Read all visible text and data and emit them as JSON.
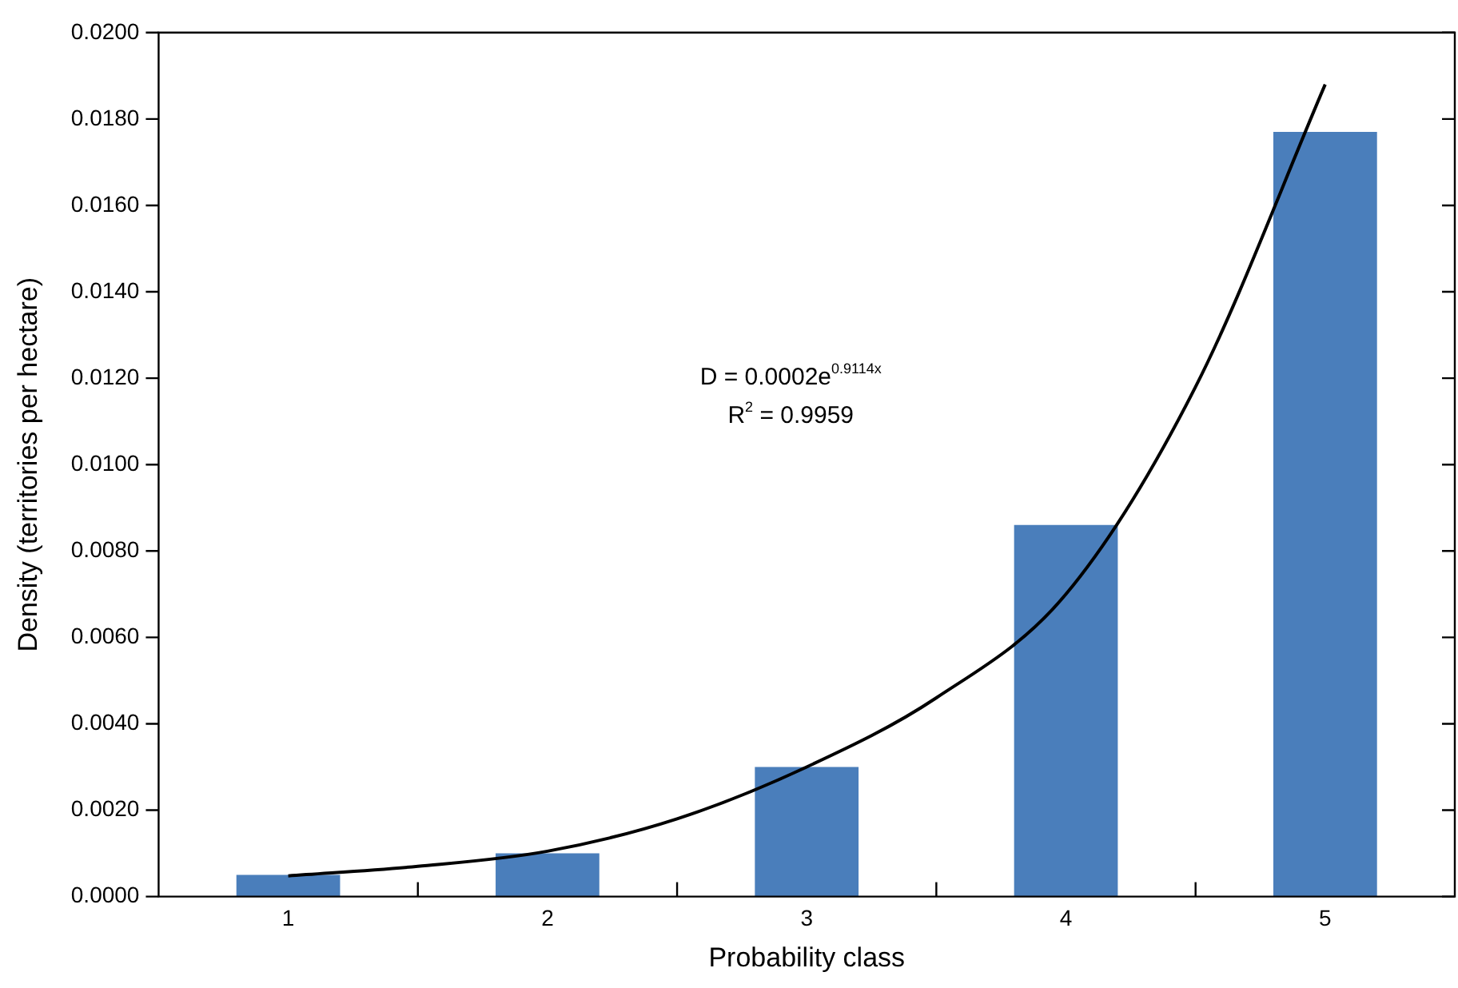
{
  "chart_data": {
    "type": "bar",
    "xlabel": "Probability class",
    "ylabel": "Density (territories per hectare)",
    "x": [
      1,
      2,
      3,
      4,
      5
    ],
    "xlim": [
      0.5,
      5.5
    ],
    "xticks": [
      1,
      2,
      3,
      4,
      5
    ],
    "ylim": [
      0,
      0.02
    ],
    "yticks": [
      {
        "value": 0,
        "label": "0.0000"
      },
      {
        "value": 0.002,
        "label": "0.0020"
      },
      {
        "value": 0.004,
        "label": "0.0040"
      },
      {
        "value": 0.006,
        "label": "0.0060"
      },
      {
        "value": 0.008,
        "label": "0.0080"
      },
      {
        "value": 0.01,
        "label": "0.0100"
      },
      {
        "value": 0.012,
        "label": "0.0120"
      },
      {
        "value": 0.014,
        "label": "0.0140"
      },
      {
        "value": 0.016,
        "label": "0.0160"
      },
      {
        "value": 0.018,
        "label": "0.0180"
      },
      {
        "value": 0.02,
        "label": "0.0200"
      }
    ],
    "series": [
      {
        "color": "#4a7ebb",
        "values": [
          0.0005,
          0.001,
          0.003,
          0.0086,
          0.0177
        ]
      },
      {
        "type": "line",
        "color": "#000000",
        "x": [
          1,
          1.5,
          2,
          2.5,
          3,
          3.5,
          4,
          4.5,
          5
        ],
        "values": [
          0.00048,
          0.0007,
          0.00105,
          0.0018,
          0.003,
          0.0046,
          0.007,
          0.0118,
          0.0188
        ]
      }
    ],
    "annotations": [
      "D = 0.0002e$^{0.9114x}$",
      "R$^{2}$ = 0.9959"
    ],
    "grid": false,
    "legend": false,
    "marker": "none"
  }
}
